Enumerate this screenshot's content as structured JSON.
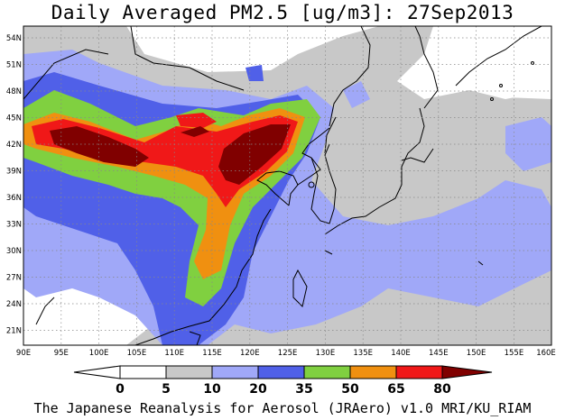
{
  "title": "Daily Averaged PM2.5 [ug/m3]: 27Sep2013",
  "footer": "The Japanese Reanalysis for Aerosol (JRAero) v1.0 MRI/KU_RIAM",
  "axes": {
    "lon_labels": [
      "90E",
      "95E",
      "100E",
      "105E",
      "110E",
      "115E",
      "120E",
      "125E",
      "130E",
      "135E",
      "140E",
      "145E",
      "150E",
      "155E",
      "160E"
    ],
    "lat_labels": [
      "54N",
      "51N",
      "48N",
      "45N",
      "42N",
      "39N",
      "36N",
      "33N",
      "30N",
      "27N",
      "24N",
      "21N"
    ]
  },
  "colorbar": {
    "levels": [
      "0",
      "5",
      "10",
      "20",
      "35",
      "50",
      "65",
      "80"
    ],
    "colors": [
      "#ffffff",
      "#c8c8c8",
      "#a0a8f8",
      "#5060e8",
      "#80d040",
      "#f09010",
      "#f01818",
      "#800000"
    ]
  },
  "palette": {
    "c5": "#c8c8c8",
    "c10": "#a0a8f8",
    "c20": "#5060e8",
    "c35": "#80d040",
    "c50": "#f09010",
    "c65": "#f01818",
    "c80": "#800000"
  }
}
